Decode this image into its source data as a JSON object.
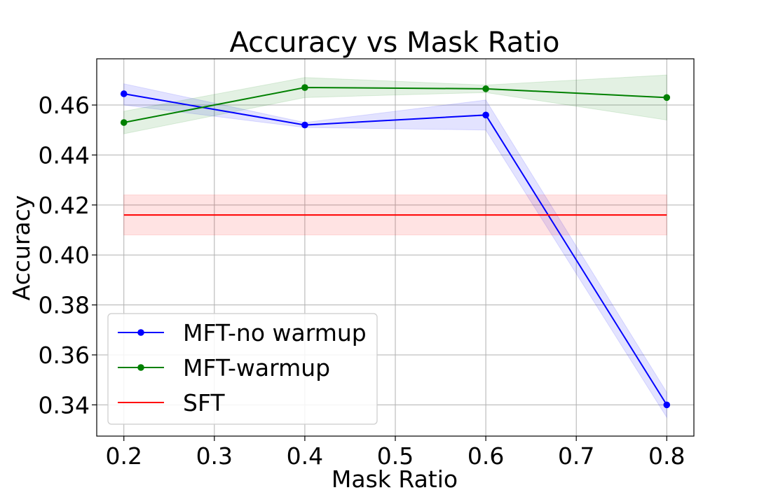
{
  "chart_data": {
    "type": "line",
    "title": "Accuracy vs Mask Ratio",
    "xlabel": "Mask Ratio",
    "ylabel": "Accuracy",
    "xlim": [
      0.17,
      0.83
    ],
    "ylim": [
      0.3275,
      0.4785
    ],
    "xticks": [
      0.2,
      0.3,
      0.4,
      0.5,
      0.6,
      0.7,
      0.8
    ],
    "xtick_labels": [
      "0.2",
      "0.3",
      "0.4",
      "0.5",
      "0.6",
      "0.7",
      "0.8"
    ],
    "yticks": [
      0.34,
      0.36,
      0.38,
      0.4,
      0.42,
      0.44,
      0.46
    ],
    "ytick_labels": [
      "0.34",
      "0.36",
      "0.38",
      "0.40",
      "0.42",
      "0.44",
      "0.46"
    ],
    "grid": true,
    "legend_position": "lower-left",
    "series": [
      {
        "name": "MFT-no warmup",
        "color": "#0000ff",
        "markers": true,
        "x": [
          0.2,
          0.4,
          0.6,
          0.8
        ],
        "y": [
          0.4645,
          0.452,
          0.456,
          0.34
        ],
        "lower": [
          0.46,
          0.451,
          0.45,
          0.335
        ],
        "upper": [
          0.4685,
          0.453,
          0.462,
          0.345
        ]
      },
      {
        "name": "MFT-warmup",
        "color": "#008000",
        "markers": true,
        "x": [
          0.2,
          0.4,
          0.6,
          0.8
        ],
        "y": [
          0.453,
          0.467,
          0.4665,
          0.463
        ],
        "lower": [
          0.4485,
          0.463,
          0.465,
          0.454
        ],
        "upper": [
          0.4575,
          0.471,
          0.468,
          0.472
        ]
      },
      {
        "name": "SFT",
        "color": "#ff0000",
        "markers": false,
        "x": [
          0.2,
          0.8
        ],
        "y": [
          0.416,
          0.416
        ],
        "lower": [
          0.408,
          0.408
        ],
        "upper": [
          0.424,
          0.424
        ]
      }
    ]
  }
}
